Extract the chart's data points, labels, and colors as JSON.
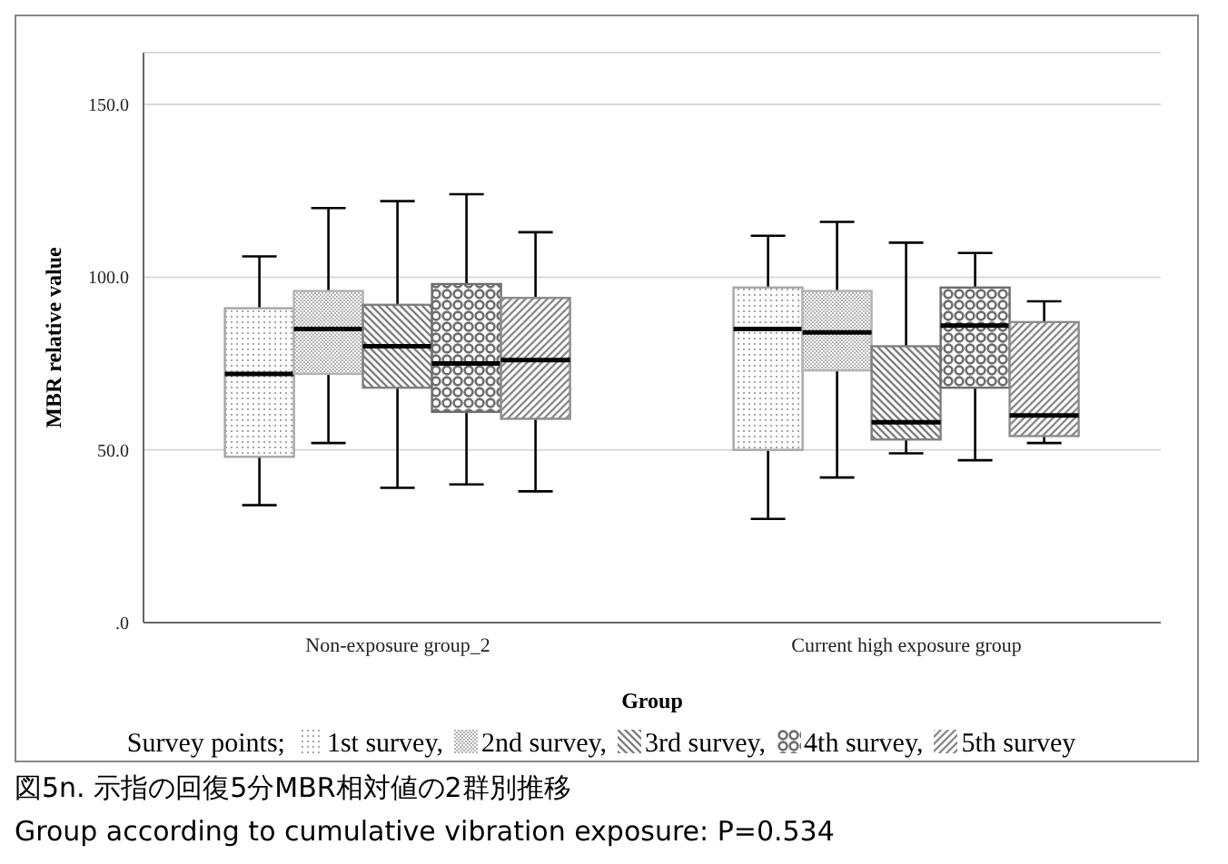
{
  "chart_data": {
    "type": "box",
    "xlabel": "Group",
    "ylabel": "MBR relative value",
    "legend_title": "Survey points;",
    "categories": [
      "Non-exposure group_2",
      "Current high exposure group"
    ],
    "ylim": [
      0,
      165
    ],
    "yticks": [
      {
        "value": 0,
        "label": ".0"
      },
      {
        "value": 50,
        "label": "50.0"
      },
      {
        "value": 100,
        "label": "100.0"
      },
      {
        "value": 150,
        "label": "150.0"
      }
    ],
    "grid": "y",
    "legend": "bottom",
    "series": [
      {
        "name": "1st survey,",
        "color": "#a6a6a6",
        "boxes": [
          {
            "low": 34,
            "q1": 48,
            "median": 72,
            "q3": 91,
            "high": 106
          },
          {
            "low": 30,
            "q1": 50,
            "median": 85,
            "q3": 97,
            "high": 112
          }
        ]
      },
      {
        "name": "2nd survey,",
        "color": "#b3b3b3",
        "boxes": [
          {
            "low": 52,
            "q1": 72,
            "median": 85,
            "q3": 96,
            "high": 120
          },
          {
            "low": 42,
            "q1": 73,
            "median": 84,
            "q3": 96,
            "high": 116
          }
        ]
      },
      {
        "name": "3rd survey,",
        "color": "#7f7f7f",
        "boxes": [
          {
            "low": 39,
            "q1": 68,
            "median": 80,
            "q3": 92,
            "high": 122
          },
          {
            "low": 49,
            "q1": 53,
            "median": 58,
            "q3": 80,
            "high": 110
          }
        ]
      },
      {
        "name": "4th survey,",
        "color": "#6e6e6e",
        "boxes": [
          {
            "low": 40,
            "q1": 61,
            "median": 75,
            "q3": 98,
            "high": 124
          },
          {
            "low": 47,
            "q1": 68,
            "median": 86,
            "q3": 97,
            "high": 107
          }
        ]
      },
      {
        "name": "5th survey",
        "color": "#8c8c8c",
        "boxes": [
          {
            "low": 38,
            "q1": 59,
            "median": 76,
            "q3": 94,
            "high": 113
          },
          {
            "low": 52,
            "q1": 54,
            "median": 60,
            "q3": 87,
            "high": 93
          }
        ]
      }
    ],
    "annotations": [
      "図5n. 示指の回復5分MBR相対値の2群別推移",
      "Group according to cumulative vibration exposure: P=0.534"
    ]
  }
}
